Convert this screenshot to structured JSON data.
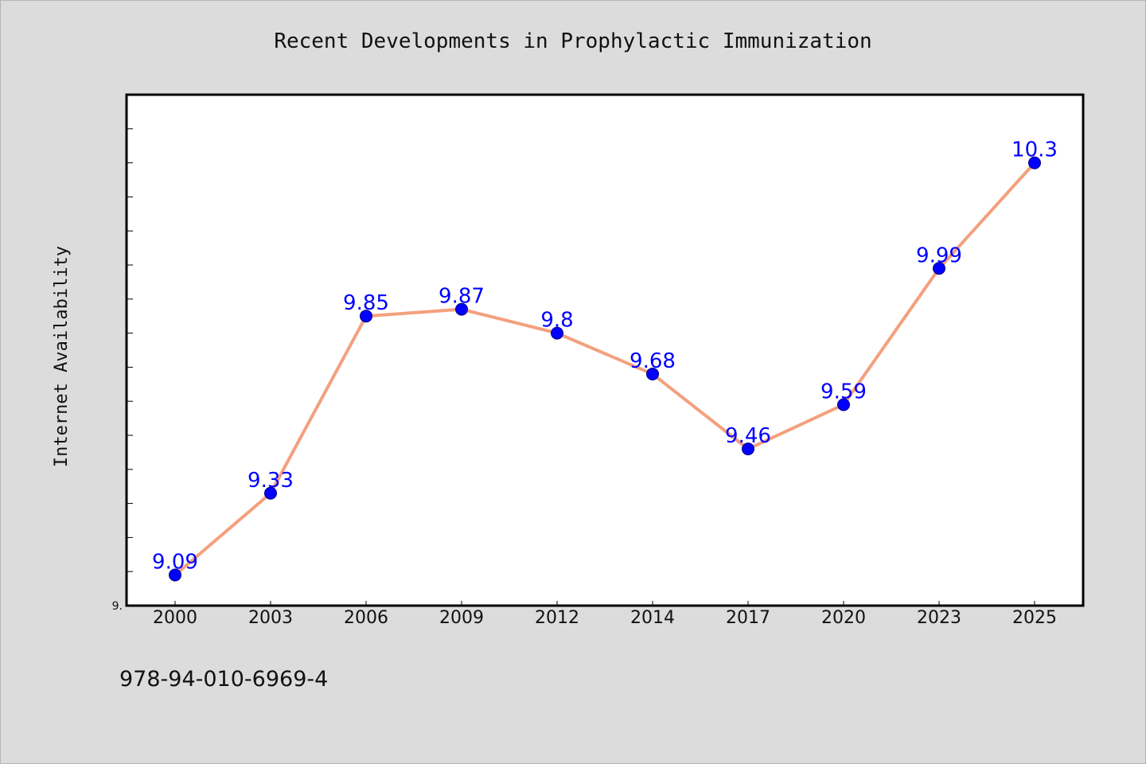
{
  "chart_data": {
    "type": "line",
    "title": "Recent Developments in Prophylactic Immunization",
    "xlabel": "",
    "ylabel": "Internet Availability",
    "categories": [
      "2000",
      "2003",
      "2006",
      "2009",
      "2012",
      "2014",
      "2017",
      "2020",
      "2023",
      "2025"
    ],
    "series": [
      {
        "values": [
          9.09,
          9.33,
          9.85,
          9.87,
          9.8,
          9.68,
          9.46,
          9.59,
          9.99,
          10.3
        ]
      }
    ],
    "data_labels": [
      "9.09",
      "9.33",
      "9.85",
      "9.87",
      "9.8",
      "9.68",
      "9.46",
      "9.59",
      "9.99",
      "10.3"
    ],
    "ylim": [
      9.0,
      10.5
    ],
    "y_minor_step": 0.1,
    "y_tick_labels": [
      {
        "value": 9.0,
        "label": "9."
      }
    ],
    "grid": false,
    "colors": {
      "line": "#f4a07e",
      "marker_fill": "#0000ff",
      "marker_stroke": "#000080",
      "data_label": "#0000ff",
      "plot_background": "#ffffff",
      "page_background": "#dcdcdc"
    }
  },
  "footer": {
    "isbn": "978-94-010-6969-4"
  }
}
